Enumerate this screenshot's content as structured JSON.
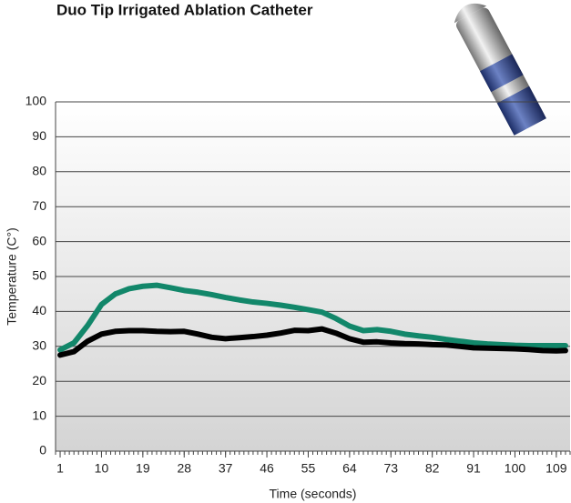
{
  "chart_data": {
    "type": "line",
    "title": "Duo Tip Irrigated Ablation Catheter",
    "x_label": "Time (seconds)",
    "y_label": "Temperature (C°)",
    "x": [
      1,
      4,
      7,
      10,
      13,
      16,
      19,
      22,
      25,
      28,
      31,
      34,
      37,
      40,
      43,
      46,
      49,
      52,
      55,
      58,
      61,
      64,
      67,
      70,
      73,
      76,
      79,
      82,
      85,
      88,
      91,
      94,
      97,
      100,
      103,
      106,
      109,
      111
    ],
    "series": [
      {
        "color": "#12876a",
        "values": [
          29,
          31,
          36,
          42,
          45,
          46.5,
          47.2,
          47.5,
          46.8,
          46,
          45.5,
          44.8,
          44,
          43.3,
          42.7,
          42.3,
          41.8,
          41.2,
          40.5,
          39.8,
          38,
          35.8,
          34.5,
          34.8,
          34.3,
          33.5,
          33,
          32.6,
          32,
          31.5,
          31,
          30.7,
          30.5,
          30.3,
          30.2,
          30.2,
          30.2,
          30.2
        ]
      },
      {
        "color": "#000000",
        "values": [
          27.5,
          28.5,
          31.5,
          33.5,
          34.3,
          34.5,
          34.5,
          34.3,
          34.2,
          34.3,
          33.5,
          32.6,
          32.2,
          32.5,
          32.8,
          33.2,
          33.8,
          34.6,
          34.5,
          35,
          33.8,
          32.2,
          31.2,
          31.3,
          31,
          30.8,
          30.7,
          30.5,
          30.4,
          30,
          29.6,
          29.5,
          29.4,
          29.3,
          29.1,
          28.8,
          28.7,
          28.8
        ]
      }
    ],
    "xlim": [
      0,
      112
    ],
    "xticks": [
      1,
      10,
      19,
      28,
      37,
      46,
      55,
      64,
      73,
      82,
      91,
      100,
      109
    ],
    "x_minor_step": 1,
    "ylim": [
      0,
      100
    ],
    "yticks": [
      0,
      10,
      20,
      30,
      40,
      50,
      60,
      70,
      80,
      90,
      100
    ],
    "grid": true
  }
}
